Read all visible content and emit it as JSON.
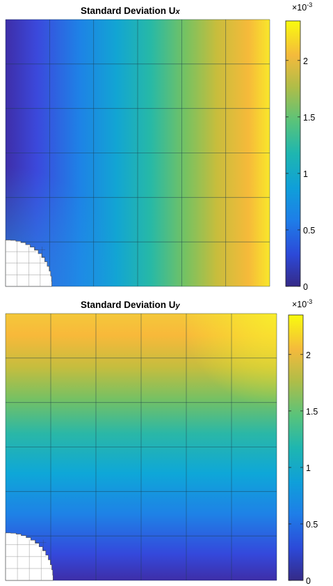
{
  "chart_data": [
    {
      "type": "heatmap",
      "title": {
        "main": "Standard Deviation U",
        "subscript": "x"
      },
      "colorbar": {
        "colormap": "parula",
        "clim": [
          0,
          0.00235
        ],
        "ticks": [
          {
            "label": "0",
            "value": 0
          },
          {
            "label": "0.5",
            "value": 0.0005
          },
          {
            "label": "1",
            "value": 0.001
          },
          {
            "label": "1.5",
            "value": 0.0015
          },
          {
            "label": "2",
            "value": 0.002
          }
        ],
        "exponent": {
          "base": "×10",
          "power": "-3"
        }
      },
      "field": {
        "increases_toward": "right",
        "min_approx": 0.0,
        "max_approx": 0.00235
      },
      "mesh": {
        "coarse_divisions": 6,
        "refined_region": "bottom-left",
        "hole": "quarter-circle"
      }
    },
    {
      "type": "heatmap",
      "title": {
        "main": "Standard Deviation U",
        "subscript": "y"
      },
      "colorbar": {
        "colormap": "parula",
        "clim": [
          0,
          0.00235
        ],
        "ticks": [
          {
            "label": "0",
            "value": 0
          },
          {
            "label": "0.5",
            "value": 0.0005
          },
          {
            "label": "1",
            "value": 0.001
          },
          {
            "label": "1.5",
            "value": 0.0015
          },
          {
            "label": "2",
            "value": 0.002
          }
        ],
        "exponent": {
          "base": "×10",
          "power": "-3"
        }
      },
      "field": {
        "increases_toward": "top",
        "min_approx": 0.0,
        "max_approx": 0.00235
      },
      "mesh": {
        "coarse_divisions": 6,
        "refined_region": "bottom-left",
        "hole": "quarter-circle"
      }
    }
  ]
}
